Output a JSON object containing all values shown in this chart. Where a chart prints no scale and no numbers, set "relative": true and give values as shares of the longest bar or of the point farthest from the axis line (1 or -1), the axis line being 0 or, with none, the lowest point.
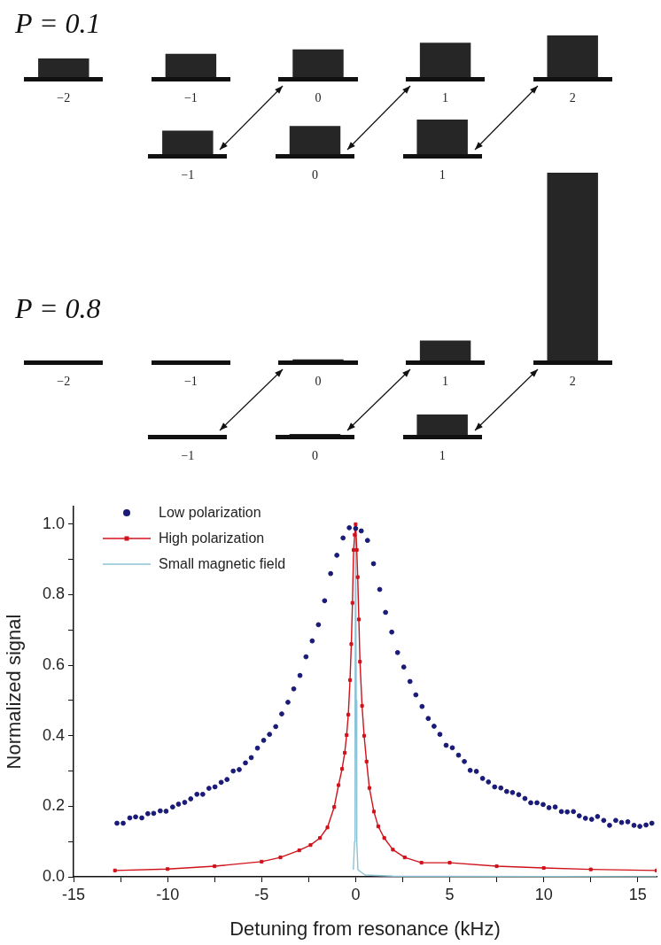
{
  "chart_data": [
    {
      "type": "bar",
      "title": "P = 0.1",
      "categories": [
        "−2",
        "−1",
        "0",
        "1",
        "2"
      ],
      "values": [
        0.46,
        0.57,
        0.67,
        0.83,
        1
      ],
      "color": "#262626",
      "relative": true
    },
    {
      "type": "bar",
      "categories": [
        "−1",
        "0",
        "1"
      ],
      "values": [
        0.69,
        0.82,
        1
      ],
      "color": "#262626",
      "relative": true
    },
    {
      "type": "bar",
      "title": "P = 0.8",
      "categories": [
        "−2",
        "−1",
        "0",
        "1",
        "2"
      ],
      "values": [
        0,
        0,
        0.01,
        0.11,
        1
      ],
      "color": "#262626",
      "relative": true
    },
    {
      "type": "bar",
      "categories": [
        "−1",
        "0",
        "1"
      ],
      "values": [
        0,
        0.08,
        1
      ],
      "color": "#262626",
      "relative": true
    },
    {
      "type": "scatter",
      "xlabel": "Detuning from resonance (kHz)",
      "ylabel": "Normalized signal",
      "xlim": [
        -15,
        16
      ],
      "xticks": [
        -15,
        {
          "value": -12.5,
          "label": null
        },
        -10,
        {
          "value": -7.5,
          "label": null
        },
        -5,
        {
          "value": -2.5,
          "label": null
        },
        0,
        {
          "value": 2.5,
          "label": null
        },
        5,
        {
          "value": 7.5,
          "label": null
        },
        10,
        {
          "value": 12.5,
          "label": null
        },
        15
      ],
      "ylim": [
        0,
        1.05
      ],
      "yticks": [
        {
          "value": 0,
          "label": "0.0"
        },
        {
          "value": 0.1,
          "label": null
        },
        {
          "value": 0.2,
          "label": "0.2"
        },
        {
          "value": 0.3,
          "label": null
        },
        {
          "value": 0.4,
          "label": "0.4"
        },
        {
          "value": 0.5,
          "label": null
        },
        {
          "value": 0.6,
          "label": "0.6"
        },
        {
          "value": 0.7,
          "label": null
        },
        {
          "value": 0.8,
          "label": "0.8"
        },
        {
          "value": 0.9,
          "label": null
        },
        {
          "value": 1,
          "label": "1.0"
        }
      ],
      "legend": "top left",
      "series": [
        {
          "name": "Low polarization",
          "type": "scatter",
          "marker": "circle",
          "color": "#1a1a78",
          "x": [
            -12.69,
            -12.36,
            -12.01,
            -11.7,
            -11.37,
            -11.05,
            -10.74,
            -10.39,
            -10.08,
            -9.73,
            -9.42,
            -9.09,
            -8.77,
            -8.44,
            -8.13,
            -7.8,
            -7.48,
            -7.15,
            -6.84,
            -6.51,
            -6.19,
            -5.86,
            -5.55,
            -5.22,
            -4.89,
            -4.58,
            -4.25,
            -3.93,
            -3.6,
            -3.29,
            -2.96,
            -2.64,
            -2.31,
            -1.98,
            -1.65,
            -1.33,
            -1.0,
            -0.67,
            -0.34,
            0.0,
            0.3,
            0.63,
            0.95,
            1.28,
            1.59,
            1.92,
            2.23,
            2.56,
            2.89,
            3.2,
            3.53,
            3.86,
            4.17,
            4.48,
            4.81,
            5.14,
            5.47,
            5.78,
            6.09,
            6.42,
            6.75,
            7.06,
            7.39,
            7.72,
            8.03,
            8.34,
            8.67,
            9.0,
            9.31,
            9.64,
            9.97,
            10.28,
            10.61,
            10.94,
            11.25,
            11.58,
            11.89,
            12.22,
            12.55,
            12.86,
            13.19,
            13.5,
            13.83,
            14.14,
            14.47,
            14.8,
            15.11,
            15.44,
            15.75
          ],
          "values": [
            0.152,
            0.152,
            0.167,
            0.17,
            0.167,
            0.179,
            0.18,
            0.187,
            0.186,
            0.198,
            0.206,
            0.211,
            0.221,
            0.234,
            0.234,
            0.251,
            0.255,
            0.268,
            0.276,
            0.3,
            0.304,
            0.323,
            0.338,
            0.365,
            0.387,
            0.404,
            0.426,
            0.462,
            0.495,
            0.533,
            0.571,
            0.624,
            0.669,
            0.715,
            0.783,
            0.86,
            0.912,
            0.961,
            0.99,
            0.988,
            0.981,
            0.954,
            0.888,
            0.815,
            0.75,
            0.694,
            0.636,
            0.595,
            0.554,
            0.516,
            0.483,
            0.449,
            0.427,
            0.404,
            0.373,
            0.366,
            0.345,
            0.327,
            0.302,
            0.299,
            0.279,
            0.269,
            0.255,
            0.252,
            0.242,
            0.239,
            0.233,
            0.222,
            0.21,
            0.21,
            0.205,
            0.196,
            0.198,
            0.185,
            0.184,
            0.185,
            0.173,
            0.166,
            0.163,
            0.171,
            0.16,
            0.146,
            0.16,
            0.154,
            0.156,
            0.146,
            0.143,
            0.147,
            0.152
          ]
        },
        {
          "name": "High polarization",
          "type": "line",
          "marker": "square",
          "color": "#d0121b",
          "x": [
            -12.8,
            -10,
            -7.5,
            -5,
            -4,
            -3,
            -2.4,
            -1.9,
            -1.5,
            -1.14,
            -0.91,
            -0.72,
            -0.58,
            -0.48,
            -0.39,
            -0.3,
            -0.23,
            -0.17,
            -0.11,
            -0.05,
            0,
            0.06,
            0.11,
            0.17,
            0.23,
            0.34,
            0.45,
            0.58,
            0.73,
            0.97,
            1.2,
            1.52,
            1.98,
            2.61,
            3.5,
            5,
            7.5,
            10,
            12.5,
            16
          ],
          "values": [
            0.018,
            0.022,
            0.03,
            0.043,
            0.055,
            0.075,
            0.09,
            0.11,
            0.14,
            0.198,
            0.26,
            0.306,
            0.352,
            0.402,
            0.46,
            0.558,
            0.66,
            0.777,
            0.927,
            0.97,
            1.0,
            0.927,
            0.85,
            0.73,
            0.61,
            0.485,
            0.4,
            0.327,
            0.252,
            0.185,
            0.143,
            0.11,
            0.077,
            0.055,
            0.04,
            0.04,
            0.03,
            0.025,
            0.021,
            0.018
          ]
        },
        {
          "name": "Small magnetic field",
          "type": "line",
          "marker": "none",
          "color": "#8cc3d6",
          "x": [
            -0.12,
            -0.06,
            -0.03,
            0,
            0.03,
            0.06,
            0.12,
            0.5,
            2,
            16
          ],
          "values": [
            0.02,
            0.1,
            0.5,
            1.0,
            0.5,
            0.1,
            0.02,
            0.005,
            0.002,
            0
          ]
        }
      ]
    }
  ]
}
